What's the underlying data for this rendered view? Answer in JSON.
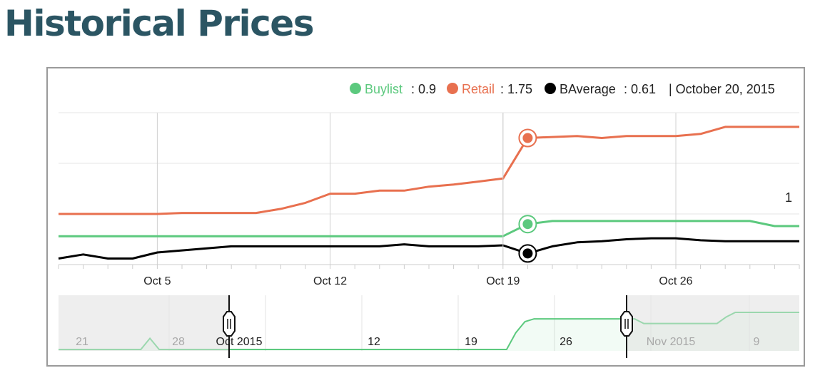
{
  "page": {
    "title": "Historical Prices"
  },
  "legend": {
    "buylist_label": "Buylist",
    "buylist_value": ": 0.9",
    "retail_label": "Retail",
    "retail_value": ": 1.75",
    "baverage_label": "BAverage",
    "baverage_value": ": 0.61",
    "date": "| October 20, 2015"
  },
  "colors": {
    "buylist": "#5cc97e",
    "retail": "#e8704f",
    "baverage": "#000000",
    "title": "#2b5563"
  },
  "chart_data": {
    "type": "line",
    "x_start": "2015-10-01",
    "x": [
      "Oct 1",
      "Oct 2",
      "Oct 3",
      "Oct 4",
      "Oct 5",
      "Oct 6",
      "Oct 7",
      "Oct 8",
      "Oct 9",
      "Oct 10",
      "Oct 11",
      "Oct 12",
      "Oct 13",
      "Oct 14",
      "Oct 15",
      "Oct 16",
      "Oct 17",
      "Oct 18",
      "Oct 19",
      "Oct 20",
      "Oct 21",
      "Oct 22",
      "Oct 23",
      "Oct 24",
      "Oct 25",
      "Oct 26",
      "Oct 27",
      "Oct 28",
      "Oct 29",
      "Oct 30",
      "Oct 31"
    ],
    "series": [
      {
        "name": "Retail",
        "color": "#e8704f",
        "values": [
          1.0,
          1.0,
          1.0,
          1.0,
          1.0,
          1.01,
          1.01,
          1.01,
          1.01,
          1.05,
          1.11,
          1.2,
          1.2,
          1.23,
          1.23,
          1.27,
          1.29,
          1.32,
          1.35,
          1.75,
          1.76,
          1.77,
          1.75,
          1.77,
          1.77,
          1.77,
          1.79,
          1.86,
          1.86,
          1.86,
          1.86
        ]
      },
      {
        "name": "Buylist",
        "color": "#5cc97e",
        "values": [
          0.78,
          0.78,
          0.78,
          0.78,
          0.78,
          0.78,
          0.78,
          0.78,
          0.78,
          0.78,
          0.78,
          0.78,
          0.78,
          0.78,
          0.78,
          0.78,
          0.78,
          0.78,
          0.78,
          0.9,
          0.93,
          0.93,
          0.93,
          0.93,
          0.93,
          0.93,
          0.93,
          0.93,
          0.93,
          0.88,
          0.88
        ]
      },
      {
        "name": "BAverage",
        "color": "#000000",
        "values": [
          0.56,
          0.6,
          0.56,
          0.56,
          0.62,
          0.64,
          0.66,
          0.68,
          0.68,
          0.68,
          0.68,
          0.68,
          0.68,
          0.68,
          0.7,
          0.68,
          0.68,
          0.68,
          0.69,
          0.61,
          0.68,
          0.72,
          0.73,
          0.75,
          0.76,
          0.76,
          0.74,
          0.73,
          0.73,
          0.73,
          0.73
        ]
      }
    ],
    "highlight_index": 19,
    "ylim": [
      0.5,
      2.0
    ],
    "x_ticks": [
      {
        "label": "Oct 5",
        "index": 4
      },
      {
        "label": "Oct 12",
        "index": 11
      },
      {
        "label": "Oct 19",
        "index": 18
      },
      {
        "label": "Oct 26",
        "index": 25
      }
    ],
    "y_tick_label": "1",
    "navigator": {
      "labels_gray": [
        "21",
        "28",
        "Nov 2015",
        "9"
      ],
      "labels_dark": [
        "Oct 2015",
        "12",
        "19",
        "26"
      ]
    }
  }
}
